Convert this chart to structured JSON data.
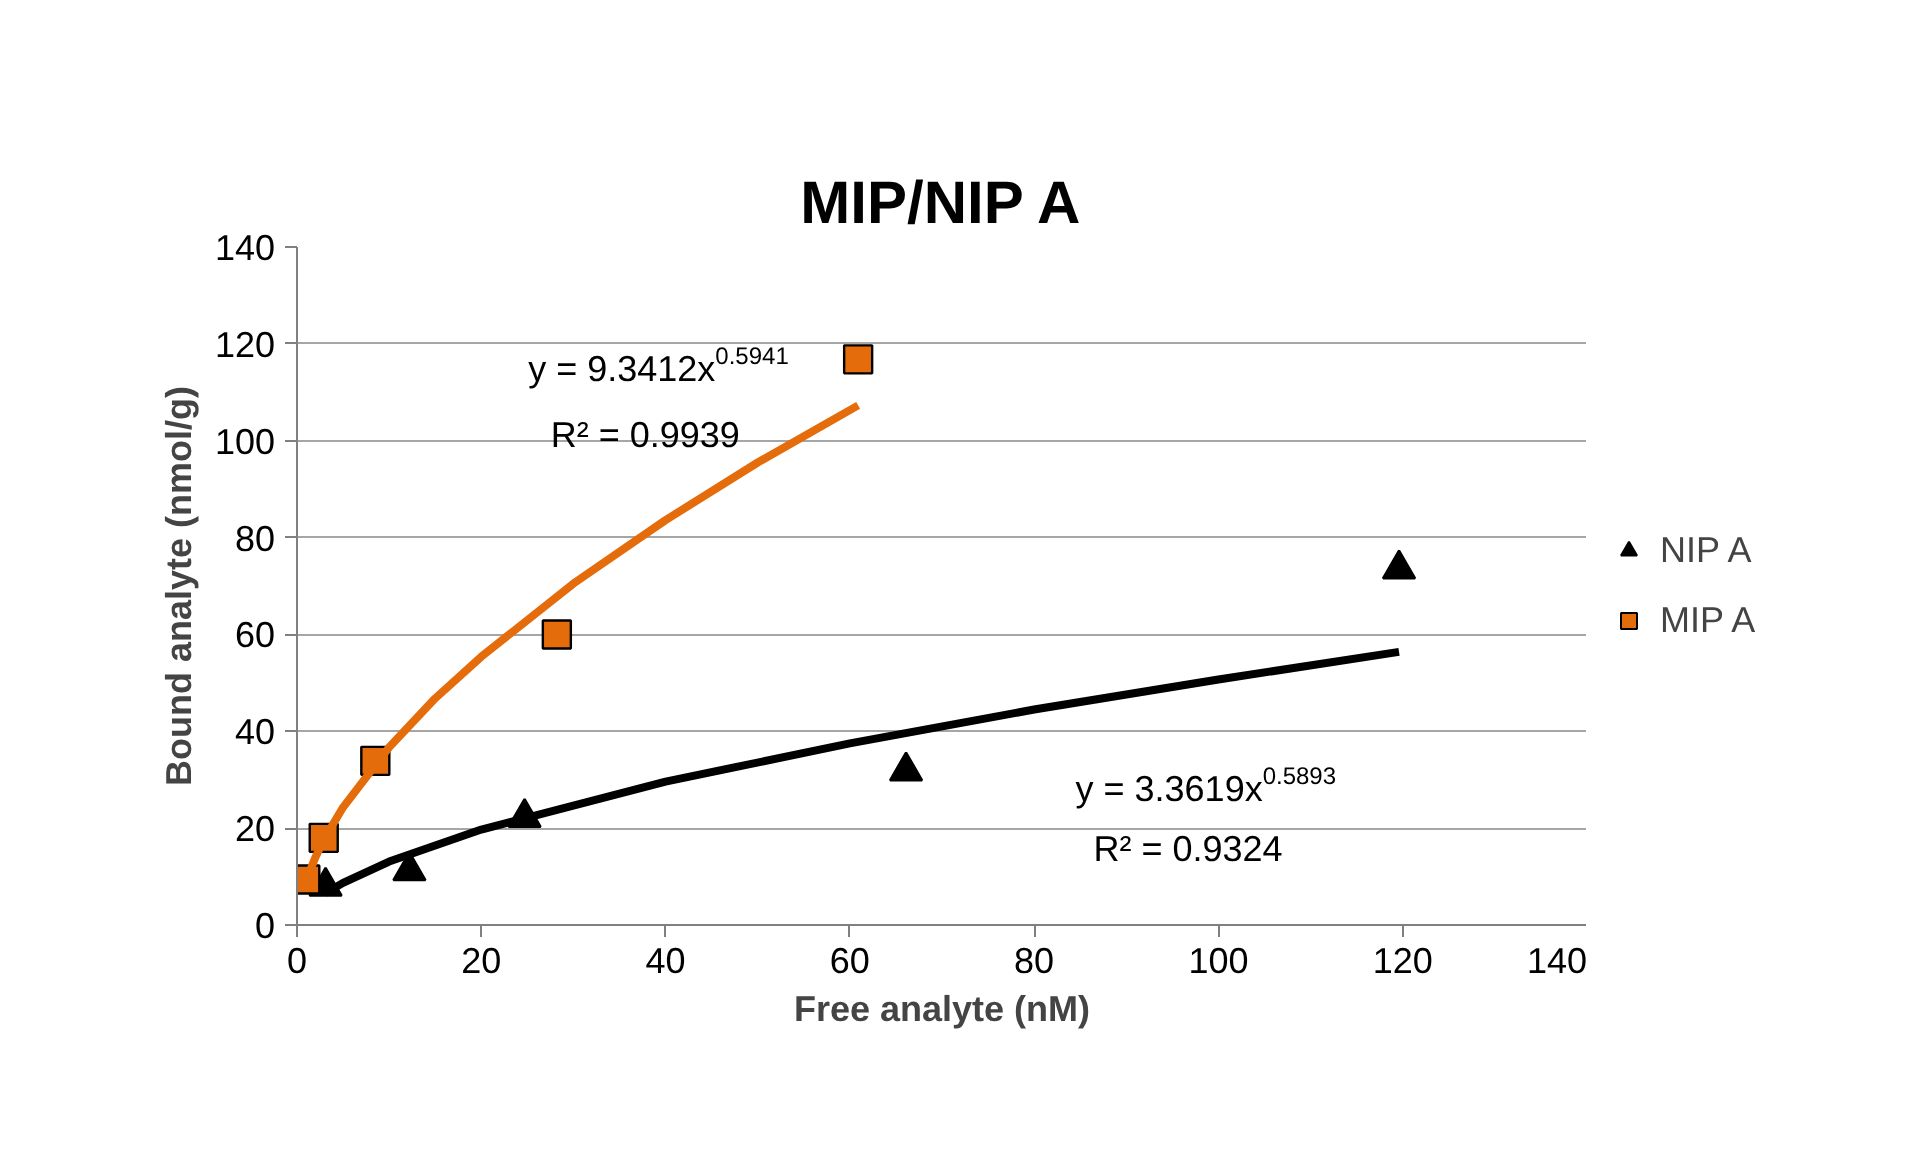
{
  "chart_data": {
    "type": "scatter",
    "title": "MIP/NIP A",
    "xlabel": "Free analyte (nM)",
    "ylabel": "Bound analyte (nmol/g)",
    "xlim": [
      0,
      140
    ],
    "ylim": [
      0,
      140
    ],
    "xticks": [
      0,
      20,
      40,
      60,
      80,
      100,
      120,
      140
    ],
    "yticks": [
      0,
      20,
      40,
      60,
      80,
      100,
      120,
      140
    ],
    "grid": "y",
    "legend": "right",
    "series": [
      {
        "name": "NIP A",
        "marker": "triangle",
        "color": "#000000",
        "x": [
          3.1,
          12.2,
          24.7,
          66.1,
          119.6
        ],
        "values": [
          8,
          11.2,
          22.2,
          31.8,
          73.5
        ]
      },
      {
        "name": "MIP A",
        "marker": "square",
        "color": "#e46c0a",
        "x": [
          0.9,
          2.9,
          8.5,
          28.2,
          60.9
        ],
        "values": [
          9.4,
          18,
          33.9,
          60,
          116.8
        ]
      },
      {
        "type": "line",
        "color": "#e46c0a",
        "x": [
          0.9,
          2,
          3,
          5,
          10,
          15,
          20,
          30,
          40,
          50,
          60.9
        ],
        "values": [
          8.8,
          14.0,
          17.9,
          24.3,
          36.7,
          46.8,
          55.4,
          70.5,
          83.6,
          95.5,
          107.3
        ]
      },
      {
        "type": "line",
        "color": "#000000",
        "x": [
          3.1,
          5,
          10,
          20,
          40,
          60,
          80,
          100,
          119.6
        ],
        "values": [
          6.6,
          8.7,
          13.1,
          19.7,
          29.6,
          37.5,
          44.5,
          50.7,
          56.4
        ]
      }
    ],
    "annotations": [
      "y = 9.3412x$^{0.5941}$",
      "R² = 0.9939",
      "y = 3.3619x$^{0.5893}$",
      "R² = 0.9324"
    ]
  }
}
